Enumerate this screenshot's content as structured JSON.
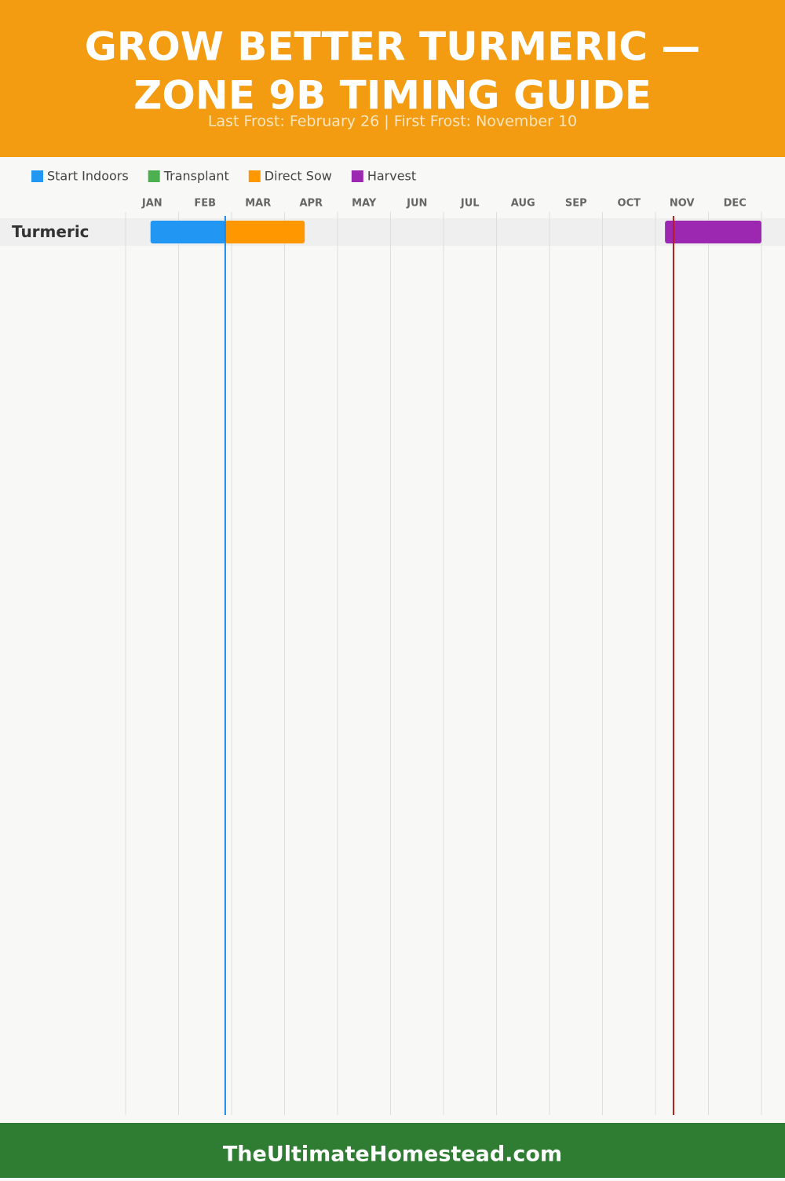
{
  "header": {
    "title": [
      "GROW BETTER TURMERIC —",
      "ZONE 9B TIMING GUIDE"
    ],
    "subtitle": "Last Frost: February 26 | First Frost: November 10"
  },
  "chart_data": {
    "type": "gantt",
    "categories": [
      "JAN",
      "FEB",
      "MAR",
      "APR",
      "MAY",
      "JUN",
      "JUL",
      "AUG",
      "SEP",
      "OCT",
      "NOV",
      "DEC"
    ],
    "xlim": [
      0,
      12
    ],
    "xticks": [
      0,
      1,
      2,
      3,
      4,
      5,
      6,
      7,
      8,
      9,
      10,
      11,
      12
    ],
    "grid": true,
    "rows": [
      "Turmeric"
    ],
    "series": [
      {
        "name": "Start Indoors",
        "color": "#2196f3",
        "start": [
          0.47
        ],
        "end": [
          1.88
        ]
      },
      {
        "name": "Transplant",
        "color": "#4caf50",
        "start": [
          null
        ],
        "end": [
          null
        ]
      },
      {
        "name": "Direct Sow",
        "color": "#ff9800",
        "start": [
          1.88
        ],
        "end": [
          3.38
        ]
      },
      {
        "name": "Harvest",
        "color": "#9c27b0",
        "start": [
          10.18
        ],
        "end": [
          12
        ]
      }
    ],
    "frost_lines": [
      {
        "value": 1.88,
        "color": "#1e88e5"
      },
      {
        "value": 10.34,
        "color": "#b71c1c"
      }
    ]
  },
  "footer": "TheUltimateHomestead.com"
}
